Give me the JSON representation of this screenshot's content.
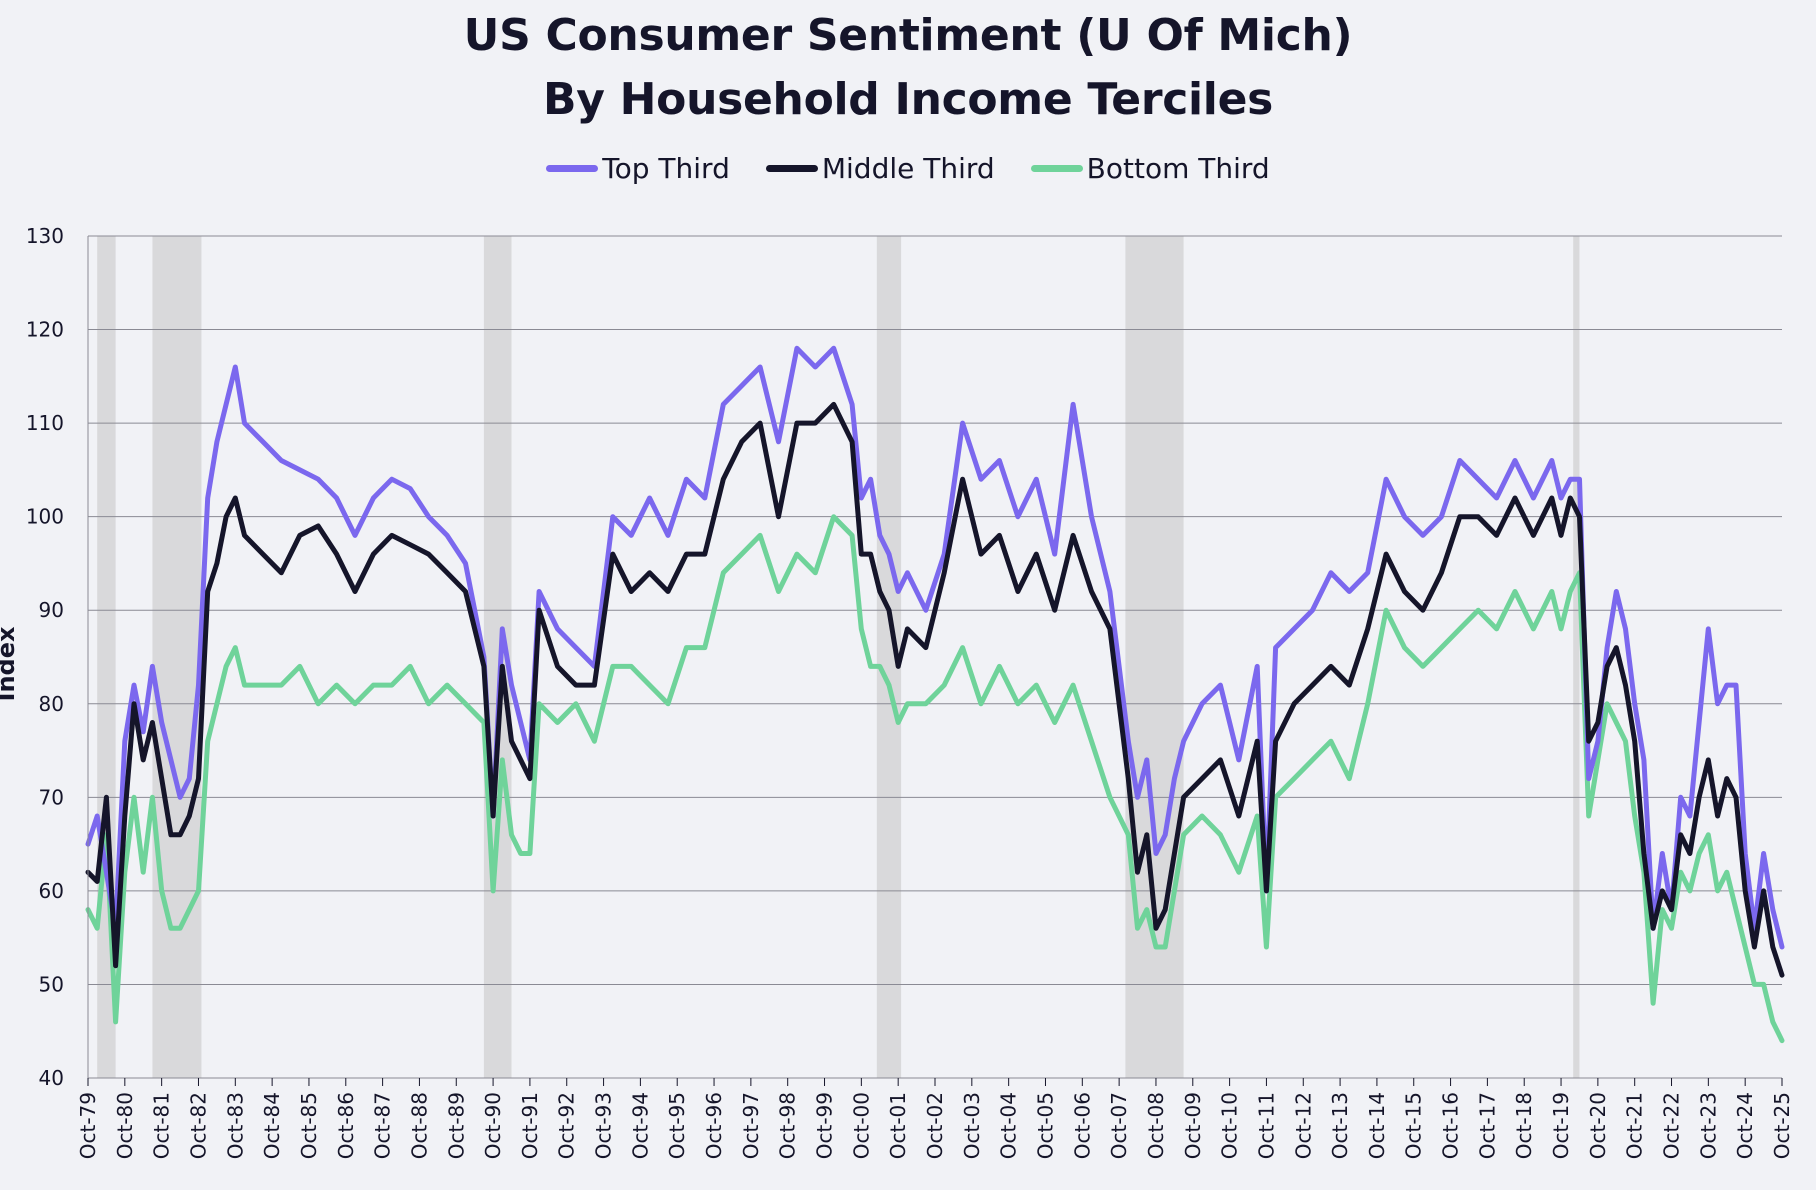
{
  "chart_data": {
    "type": "line",
    "title_line1": "US Consumer Sentiment (U Of Mich)",
    "title_line2": "By Household Income Terciles",
    "ylabel": "Index",
    "xlabel": "",
    "ylim": [
      40,
      130
    ],
    "yticks": [
      40,
      50,
      60,
      70,
      80,
      90,
      100,
      110,
      120,
      130
    ],
    "grid": true,
    "legend_position": "top-center",
    "x_start": 1979.75,
    "x_end": 2025.75,
    "x_tick_labels": [
      "Oct-79",
      "Oct-80",
      "Oct-81",
      "Oct-82",
      "Oct-83",
      "Oct-84",
      "Oct-85",
      "Oct-86",
      "Oct-87",
      "Oct-88",
      "Oct-89",
      "Oct-90",
      "Oct-91",
      "Oct-92",
      "Oct-93",
      "Oct-94",
      "Oct-95",
      "Oct-96",
      "Oct-97",
      "Oct-98",
      "Oct-99",
      "Oct-00",
      "Oct-01",
      "Oct-02",
      "Oct-03",
      "Oct-04",
      "Oct-05",
      "Oct-06",
      "Oct-07",
      "Oct-08",
      "Oct-09",
      "Oct-10",
      "Oct-11",
      "Oct-12",
      "Oct-13",
      "Oct-14",
      "Oct-15",
      "Oct-16",
      "Oct-17",
      "Oct-18",
      "Oct-19",
      "Oct-20",
      "Oct-21",
      "Oct-22",
      "Oct-23",
      "Oct-24",
      "Oct-25"
    ],
    "recessions": [
      [
        1980.0,
        1980.5
      ],
      [
        1981.5,
        1982.83
      ],
      [
        1990.5,
        1991.25
      ],
      [
        2001.17,
        2001.83
      ],
      [
        2007.92,
        2009.5
      ],
      [
        2020.08,
        2020.25
      ]
    ],
    "series_x": [
      1979.75,
      1980.0,
      1980.25,
      1980.5,
      1980.75,
      1981.0,
      1981.25,
      1981.5,
      1981.75,
      1982.0,
      1982.25,
      1982.5,
      1982.75,
      1983.0,
      1983.25,
      1983.5,
      1983.75,
      1984.0,
      1984.5,
      1985.0,
      1985.5,
      1986.0,
      1986.5,
      1987.0,
      1987.5,
      1988.0,
      1988.5,
      1989.0,
      1989.5,
      1990.0,
      1990.5,
      1990.75,
      1991.0,
      1991.25,
      1991.5,
      1991.75,
      1992.0,
      1992.5,
      1993.0,
      1993.5,
      1994.0,
      1994.5,
      1995.0,
      1995.5,
      1996.0,
      1996.5,
      1997.0,
      1997.5,
      1998.0,
      1998.5,
      1999.0,
      1999.5,
      2000.0,
      2000.5,
      2000.75,
      2001.0,
      2001.25,
      2001.5,
      2001.75,
      2002.0,
      2002.5,
      2003.0,
      2003.5,
      2004.0,
      2004.5,
      2005.0,
      2005.5,
      2006.0,
      2006.5,
      2007.0,
      2007.5,
      2008.0,
      2008.25,
      2008.5,
      2008.75,
      2009.0,
      2009.25,
      2009.5,
      2010.0,
      2010.5,
      2011.0,
      2011.5,
      2011.75,
      2012.0,
      2012.5,
      2013.0,
      2013.5,
      2014.0,
      2014.5,
      2015.0,
      2015.5,
      2016.0,
      2016.5,
      2017.0,
      2017.5,
      2018.0,
      2018.5,
      2019.0,
      2019.5,
      2019.75,
      2020.0,
      2020.25,
      2020.5,
      2020.75,
      2021.0,
      2021.25,
      2021.5,
      2021.75,
      2022.0,
      2022.25,
      2022.5,
      2022.75,
      2023.0,
      2023.25,
      2023.5,
      2023.75,
      2024.0,
      2024.25,
      2024.5,
      2024.75,
      2025.0,
      2025.25,
      2025.5,
      2025.75
    ],
    "series": [
      {
        "name": "Top Third",
        "color": "#7b68ee",
        "values": [
          65,
          68,
          62,
          56,
          76,
          82,
          77,
          84,
          78,
          74,
          70,
          72,
          82,
          102,
          108,
          112,
          116,
          110,
          108,
          106,
          105,
          104,
          102,
          98,
          102,
          104,
          103,
          100,
          98,
          95,
          85,
          68,
          88,
          82,
          78,
          74,
          92,
          88,
          86,
          84,
          100,
          98,
          102,
          98,
          104,
          102,
          112,
          114,
          116,
          108,
          118,
          116,
          118,
          112,
          102,
          104,
          98,
          96,
          92,
          94,
          90,
          96,
          110,
          104,
          106,
          100,
          104,
          96,
          112,
          100,
          92,
          76,
          70,
          74,
          64,
          66,
          72,
          76,
          80,
          82,
          74,
          84,
          60,
          86,
          88,
          90,
          94,
          92,
          94,
          104,
          100,
          98,
          100,
          106,
          104,
          102,
          106,
          102,
          106,
          102,
          104,
          104,
          72,
          76,
          86,
          92,
          88,
          80,
          74,
          56,
          64,
          58,
          70,
          68,
          78,
          88,
          80,
          82,
          82,
          64,
          56,
          64,
          58,
          54
        ]
      },
      {
        "name": "Middle Third",
        "color": "#15152a",
        "values": [
          62,
          61,
          70,
          52,
          68,
          80,
          74,
          78,
          72,
          66,
          66,
          68,
          72,
          92,
          95,
          100,
          102,
          98,
          96,
          94,
          98,
          99,
          96,
          92,
          96,
          98,
          97,
          96,
          94,
          92,
          84,
          68,
          84,
          76,
          74,
          72,
          90,
          84,
          82,
          82,
          96,
          92,
          94,
          92,
          96,
          96,
          104,
          108,
          110,
          100,
          110,
          110,
          112,
          108,
          96,
          96,
          92,
          90,
          84,
          88,
          86,
          94,
          104,
          96,
          98,
          92,
          96,
          90,
          98,
          92,
          88,
          72,
          62,
          66,
          56,
          58,
          64,
          70,
          72,
          74,
          68,
          76,
          60,
          76,
          80,
          82,
          84,
          82,
          88,
          96,
          92,
          90,
          94,
          100,
          100,
          98,
          102,
          98,
          102,
          98,
          102,
          100,
          76,
          78,
          84,
          86,
          82,
          76,
          64,
          56,
          60,
          58,
          66,
          64,
          70,
          74,
          68,
          72,
          70,
          60,
          54,
          60,
          54,
          51
        ]
      },
      {
        "name": "Bottom Third",
        "color": "#6fd39a",
        "values": [
          58,
          56,
          66,
          46,
          62,
          70,
          62,
          70,
          60,
          56,
          56,
          58,
          60,
          76,
          80,
          84,
          86,
          82,
          82,
          82,
          84,
          80,
          82,
          80,
          82,
          82,
          84,
          80,
          82,
          80,
          78,
          60,
          74,
          66,
          64,
          64,
          80,
          78,
          80,
          76,
          84,
          84,
          82,
          80,
          86,
          86,
          94,
          96,
          98,
          92,
          96,
          94,
          100,
          98,
          88,
          84,
          84,
          82,
          78,
          80,
          80,
          82,
          86,
          80,
          84,
          80,
          82,
          78,
          82,
          76,
          70,
          66,
          56,
          58,
          54,
          54,
          60,
          66,
          68,
          66,
          62,
          68,
          54,
          70,
          72,
          74,
          76,
          72,
          80,
          90,
          86,
          84,
          86,
          88,
          90,
          88,
          92,
          88,
          92,
          88,
          92,
          94,
          68,
          74,
          80,
          78,
          76,
          68,
          62,
          48,
          58,
          56,
          62,
          60,
          64,
          66,
          60,
          62,
          58,
          54,
          50,
          50,
          46,
          44
        ]
      }
    ]
  }
}
